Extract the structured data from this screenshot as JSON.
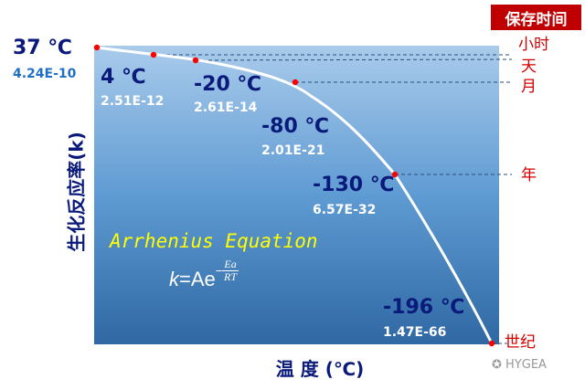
{
  "title_box": "保存时间",
  "y_axis_label": "生化反应率(k)",
  "x_axis_label": "温 度 (℃)",
  "equation_name": "Arrhenius Equation",
  "equation": {
    "lhs": "k",
    "mid": "=Ae",
    "exp_sign": "−",
    "numerator": "Ea",
    "denominator": "RT"
  },
  "points": [
    {
      "temp": "37 ℃",
      "k": "4.24E-10"
    },
    {
      "temp": "4 ℃",
      "k": "2.51E-12"
    },
    {
      "temp": "-20 ℃",
      "k": "2.61E-14"
    },
    {
      "temp": "-80 ℃",
      "k": "2.01E-21"
    },
    {
      "temp": "-130 ℃",
      "k": "6.57E-32"
    },
    {
      "temp": "-196 ℃",
      "k": "1.47E-66"
    }
  ],
  "storage_labels": [
    "小时",
    "天",
    "月",
    "年",
    "世纪"
  ],
  "watermark": "HYGEA",
  "colors": {
    "curve": "#ffffff",
    "point": "#ff0000",
    "label_red": "#d40000",
    "title_bg": "#c00000",
    "temp_text": "#0a1a7a",
    "first_k": "#1f6fc5"
  }
}
